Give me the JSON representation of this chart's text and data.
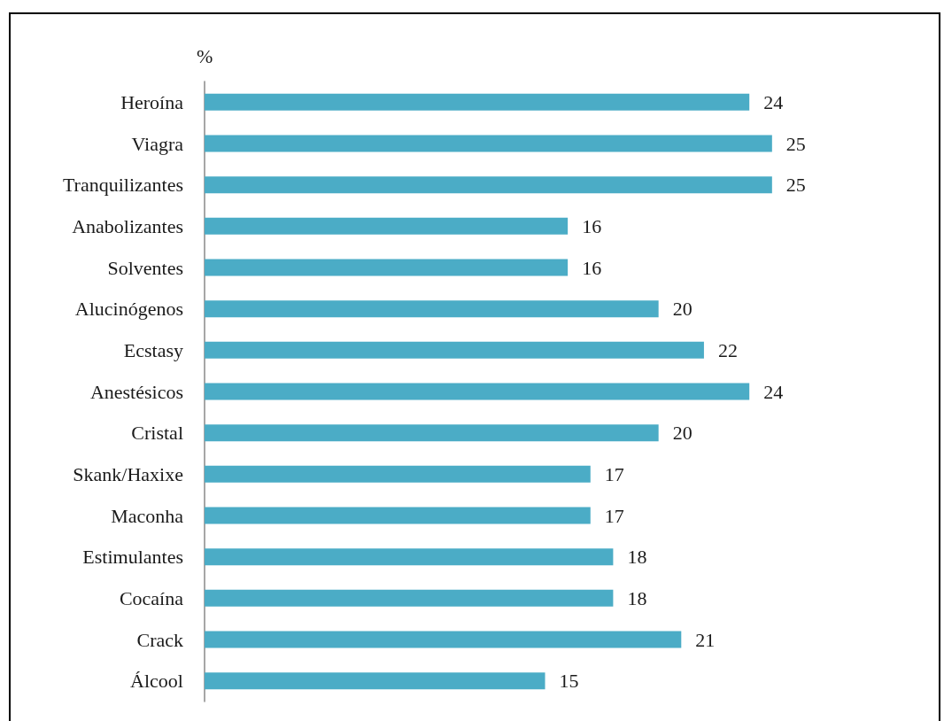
{
  "chart_data": {
    "type": "bar",
    "orientation": "horizontal",
    "xlabel": "%",
    "categories": [
      "Heroína",
      "Viagra",
      "Tranquilizantes",
      "Anabolizantes",
      "Solventes",
      "Alucinógenos",
      "Ecstasy",
      "Anestésicos",
      "Cristal",
      "Skank/Haxixe",
      "Maconha",
      "Estimulantes",
      "Cocaína",
      "Crack",
      "Álcool"
    ],
    "values": [
      24,
      25,
      25,
      16,
      16,
      20,
      22,
      24,
      20,
      17,
      17,
      18,
      18,
      21,
      15
    ],
    "color": "#4bacc6",
    "data_labels": true
  }
}
